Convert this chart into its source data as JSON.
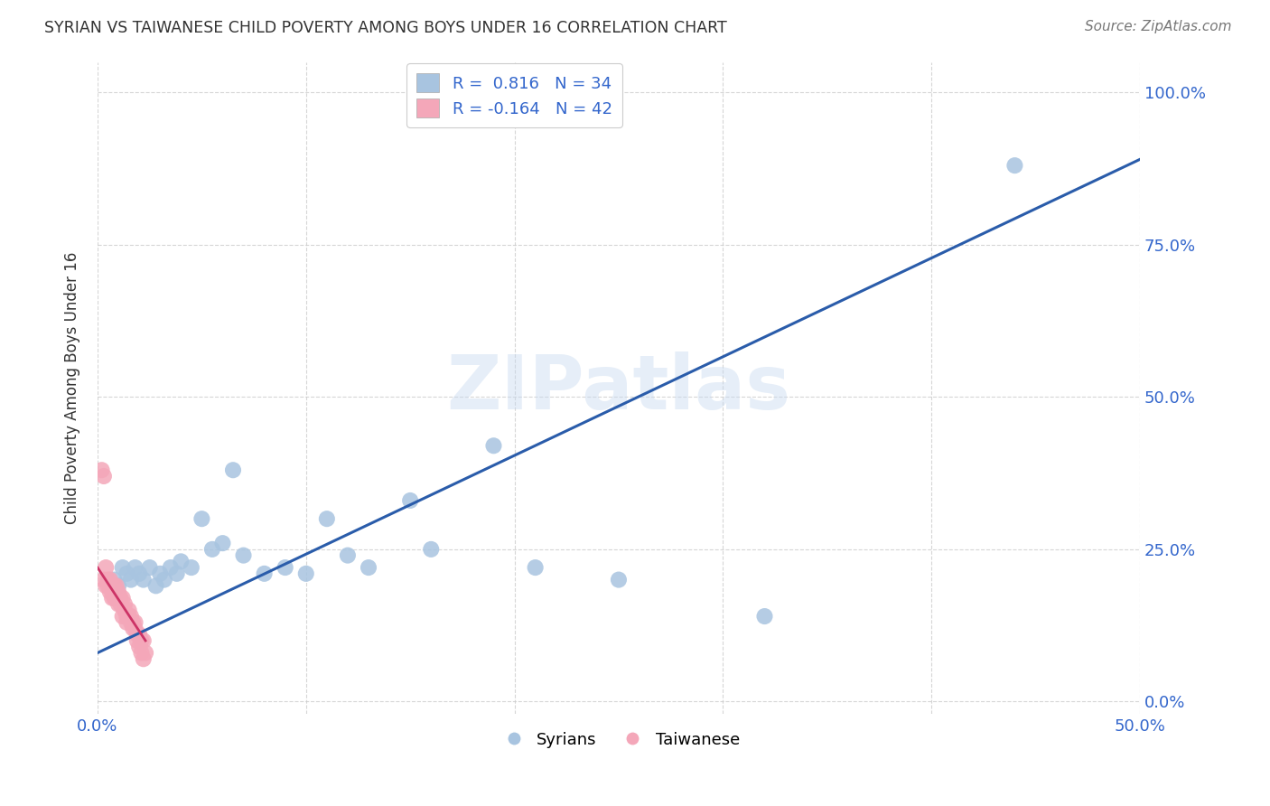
{
  "title": "SYRIAN VS TAIWANESE CHILD POVERTY AMONG BOYS UNDER 16 CORRELATION CHART",
  "source": "Source: ZipAtlas.com",
  "ylabel": "Child Poverty Among Boys Under 16",
  "watermark": "ZIPatlas",
  "xlim": [
    0.0,
    0.5
  ],
  "ylim": [
    -0.02,
    1.05
  ],
  "xticks": [
    0.0,
    0.1,
    0.2,
    0.3,
    0.4,
    0.5
  ],
  "yticks": [
    0.0,
    0.25,
    0.5,
    0.75,
    1.0
  ],
  "ytick_labels": [
    "0.0%",
    "25.0%",
    "50.0%",
    "75.0%",
    "100.0%"
  ],
  "xtick_labels": [
    "0.0%",
    "",
    "",
    "",
    "",
    "50.0%"
  ],
  "syrian_R": 0.816,
  "syrian_N": 34,
  "taiwanese_R": -0.164,
  "taiwanese_N": 42,
  "syrian_color": "#a8c4e0",
  "taiwanese_color": "#f4a7b9",
  "line_color_syrian": "#2a5caa",
  "line_color_taiwanese": "#cc3366",
  "background_color": "#ffffff",
  "grid_color": "#cccccc",
  "title_color": "#333333",
  "axis_label_color": "#3366cc",
  "syrian_x": [
    0.008,
    0.01,
    0.012,
    0.014,
    0.016,
    0.018,
    0.02,
    0.022,
    0.025,
    0.028,
    0.03,
    0.032,
    0.035,
    0.038,
    0.04,
    0.045,
    0.05,
    0.055,
    0.06,
    0.065,
    0.07,
    0.08,
    0.09,
    0.1,
    0.11,
    0.12,
    0.13,
    0.15,
    0.16,
    0.19,
    0.21,
    0.25,
    0.32,
    0.44
  ],
  "syrian_y": [
    0.2,
    0.19,
    0.22,
    0.21,
    0.2,
    0.22,
    0.21,
    0.2,
    0.22,
    0.19,
    0.21,
    0.2,
    0.22,
    0.21,
    0.23,
    0.22,
    0.3,
    0.25,
    0.26,
    0.38,
    0.24,
    0.21,
    0.22,
    0.21,
    0.3,
    0.24,
    0.22,
    0.33,
    0.25,
    0.42,
    0.22,
    0.2,
    0.14,
    0.88
  ],
  "taiwanese_x": [
    0.002,
    0.003,
    0.003,
    0.004,
    0.004,
    0.005,
    0.005,
    0.006,
    0.006,
    0.007,
    0.007,
    0.008,
    0.008,
    0.009,
    0.009,
    0.01,
    0.01,
    0.011,
    0.011,
    0.012,
    0.012,
    0.013,
    0.013,
    0.014,
    0.014,
    0.015,
    0.015,
    0.016,
    0.016,
    0.017,
    0.017,
    0.018,
    0.018,
    0.019,
    0.019,
    0.02,
    0.02,
    0.021,
    0.021,
    0.022,
    0.022,
    0.023
  ],
  "taiwanese_y": [
    0.38,
    0.37,
    0.2,
    0.22,
    0.19,
    0.2,
    0.19,
    0.18,
    0.2,
    0.18,
    0.17,
    0.17,
    0.19,
    0.17,
    0.19,
    0.18,
    0.16,
    0.17,
    0.16,
    0.14,
    0.17,
    0.15,
    0.16,
    0.14,
    0.13,
    0.15,
    0.14,
    0.14,
    0.13,
    0.13,
    0.12,
    0.13,
    0.12,
    0.11,
    0.1,
    0.11,
    0.09,
    0.1,
    0.08,
    0.1,
    0.07,
    0.08
  ],
  "syrian_line_x": [
    0.0,
    0.5
  ],
  "syrian_line_y": [
    0.08,
    0.89
  ],
  "taiwanese_line_x": [
    0.0,
    0.023
  ],
  "taiwanese_line_y": [
    0.22,
    0.1
  ]
}
